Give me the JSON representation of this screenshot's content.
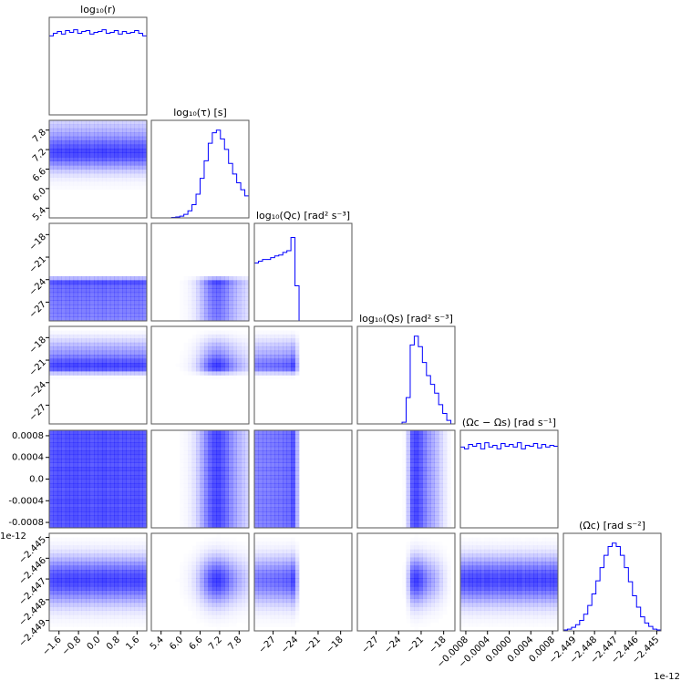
{
  "chart_data": {
    "type": "corner",
    "color": "#0000ff",
    "offset_text": "1e-12",
    "params": [
      {
        "title": "log₁₀(r)",
        "range": [
          -2.0,
          2.0
        ],
        "ticks": [
          -1.6,
          -0.8,
          0.0,
          0.8,
          1.6
        ],
        "tick_labels": [
          "−1.6",
          "−0.8",
          "0.0",
          "0.8",
          "1.6"
        ],
        "hist": [
          0.9,
          0.93,
          0.95,
          0.92,
          0.96,
          0.94,
          0.97,
          0.93,
          0.95,
          0.96,
          0.92,
          0.94,
          0.95,
          0.97,
          0.93,
          0.94,
          0.96,
          0.92,
          0.95,
          0.93,
          0.94,
          0.96,
          0.93,
          0.9
        ]
      },
      {
        "title": "log₁₀(τ) [s]",
        "range": [
          5.1,
          8.1
        ],
        "ticks": [
          5.4,
          6.0,
          6.6,
          7.2,
          7.8
        ],
        "tick_labels": [
          "5.4",
          "6.0",
          "6.6",
          "7.2",
          "7.8"
        ],
        "hist": [
          0,
          0,
          0,
          0,
          0,
          0.005,
          0.01,
          0.02,
          0.04,
          0.08,
          0.15,
          0.27,
          0.45,
          0.65,
          0.85,
          0.97,
          1.0,
          0.9,
          0.78,
          0.62,
          0.5,
          0.4,
          0.32,
          0.25
        ]
      },
      {
        "title": "log₁₀(Qc) [rad² s⁻³]",
        "range": [
          -29.5,
          -16.5
        ],
        "ticks": [
          -27,
          -24,
          -21,
          -18
        ],
        "tick_labels": [
          "−27",
          "−24",
          "−21",
          "−18"
        ],
        "hist": [
          0.66,
          0.68,
          0.7,
          0.7,
          0.72,
          0.74,
          0.75,
          0.78,
          0.8,
          0.95,
          0.4,
          0,
          0,
          0,
          0,
          0,
          0,
          0,
          0,
          0,
          0,
          0,
          0,
          0
        ]
      },
      {
        "title": "log₁₀(Qs) [rad² s⁻³]",
        "range": [
          -29.5,
          -16.5
        ],
        "ticks": [
          -27,
          -24,
          -21,
          -18
        ],
        "tick_labels": [
          "−27",
          "−24",
          "−21",
          "−18"
        ],
        "hist": [
          0,
          0,
          0,
          0,
          0,
          0,
          0,
          0,
          0,
          0,
          0,
          0.02,
          0.3,
          0.9,
          1.0,
          0.88,
          0.7,
          0.55,
          0.45,
          0.35,
          0.22,
          0.12,
          0.04,
          0
        ]
      },
      {
        "title": "(Ωc − Ωs) [rad s⁻¹]",
        "range": [
          -0.0009,
          0.0009
        ],
        "ticks": [
          -0.0008,
          -0.0004,
          0.0,
          0.0004,
          0.0008
        ],
        "tick_labels": [
          "−0.0008",
          "−0.0004",
          "0.0000",
          "0.0004",
          "0.0008"
        ],
        "y_tick_labels": [
          "-0.0008",
          "-0.0004",
          "0.0",
          "0.0004",
          "0.0008"
        ],
        "hist": [
          0.92,
          0.9,
          0.95,
          0.93,
          0.96,
          0.9,
          0.97,
          0.92,
          0.94,
          0.9,
          0.96,
          0.93,
          0.95,
          0.92,
          0.97,
          0.9,
          0.94,
          0.93,
          0.96,
          0.91,
          0.95,
          0.92,
          0.94,
          0.93
        ]
      },
      {
        "title": "(Ω̇c) [rad s⁻²]",
        "range": [
          -2.4495,
          -2.4448
        ],
        "ticks": [
          -2.449,
          -2.448,
          -2.447,
          -2.446,
          -2.445
        ],
        "tick_labels": [
          "−2.449",
          "−2.448",
          "−2.447",
          "−2.446",
          "−2.445"
        ],
        "hist": [
          0.01,
          0.02,
          0.04,
          0.07,
          0.12,
          0.19,
          0.29,
          0.42,
          0.57,
          0.72,
          0.86,
          0.96,
          1.0,
          0.96,
          0.86,
          0.72,
          0.56,
          0.4,
          0.27,
          0.16,
          0.09,
          0.05,
          0.02,
          0.01
        ]
      }
    ]
  }
}
